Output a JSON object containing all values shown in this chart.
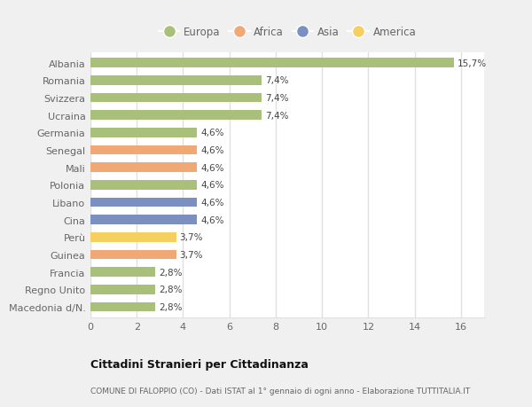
{
  "categories": [
    "Albania",
    "Romania",
    "Svizzera",
    "Ucraina",
    "Germania",
    "Senegal",
    "Mali",
    "Polonia",
    "Libano",
    "Cina",
    "Perù",
    "Guinea",
    "Francia",
    "Regno Unito",
    "Macedonia d/N."
  ],
  "values": [
    15.7,
    7.4,
    7.4,
    7.4,
    4.6,
    4.6,
    4.6,
    4.6,
    4.6,
    4.6,
    3.7,
    3.7,
    2.8,
    2.8,
    2.8
  ],
  "labels": [
    "15,7%",
    "7,4%",
    "7,4%",
    "7,4%",
    "4,6%",
    "4,6%",
    "4,6%",
    "4,6%",
    "4,6%",
    "4,6%",
    "3,7%",
    "3,7%",
    "2,8%",
    "2,8%",
    "2,8%"
  ],
  "colors": [
    "#a8c07a",
    "#a8c07a",
    "#a8c07a",
    "#a8c07a",
    "#a8c07a",
    "#f0a875",
    "#f0a875",
    "#a8c07a",
    "#7b8fc0",
    "#7b8fc0",
    "#f5d060",
    "#f0a875",
    "#a8c07a",
    "#a8c07a",
    "#a8c07a"
  ],
  "legend_labels": [
    "Europa",
    "Africa",
    "Asia",
    "America"
  ],
  "legend_colors": [
    "#a8c07a",
    "#f0a875",
    "#7b8fc0",
    "#f5d060"
  ],
  "title": "Cittadini Stranieri per Cittadinanza",
  "subtitle": "COMUNE DI FALOPPIO (CO) - Dati ISTAT al 1° gennaio di ogni anno - Elaborazione TUTTITALIA.IT",
  "xlim": [
    0,
    17
  ],
  "xticks": [
    0,
    2,
    4,
    6,
    8,
    10,
    12,
    14,
    16
  ],
  "figure_bg": "#f0f0f0",
  "axes_bg": "#ffffff",
  "grid_color": "#e0e0e0",
  "text_color": "#666666",
  "label_color": "#444444",
  "title_color": "#111111",
  "subtitle_color": "#666666",
  "bar_height": 0.55
}
